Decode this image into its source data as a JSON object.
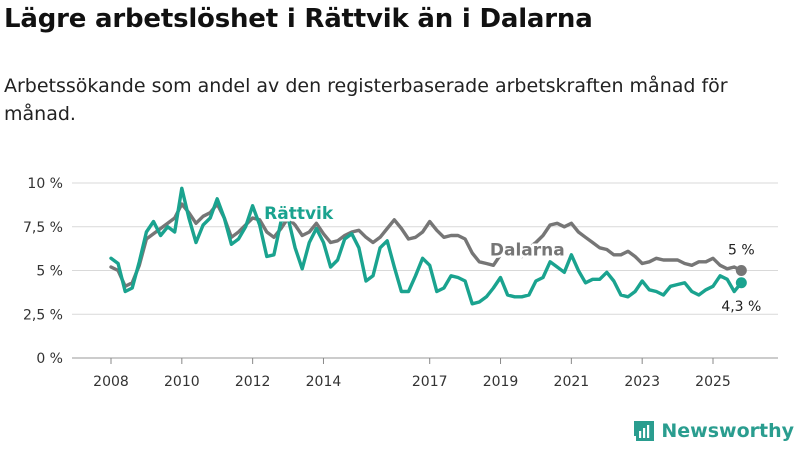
{
  "title": "Lägre arbetslöshet i Rättvik än i Dalarna",
  "subtitle": "Arbetssökande som andel av den registerbaserade arbetskraften månad för månad.",
  "brand": {
    "name": "Newsworthy",
    "icon": "newsworthy-logo-icon",
    "color": "#2a9d8f"
  },
  "chart_data": {
    "type": "line",
    "title": "Lägre arbetslöshet i Rättvik än i Dalarna",
    "xlabel": "",
    "ylabel": "",
    "ylim": [
      0,
      10
    ],
    "xlim": [
      2007.2,
      2026.9
    ],
    "y_ticks": [
      0,
      2.5,
      5,
      7.5,
      10
    ],
    "y_tick_labels": [
      "0 %",
      "2,5 %",
      "5 %",
      "7,5 %",
      "10 %"
    ],
    "x_ticks": [
      2008,
      2010,
      2012,
      2014,
      2017,
      2019,
      2021,
      2023,
      2025
    ],
    "x_tick_labels": [
      "2008",
      "2010",
      "2012",
      "2014",
      "2017",
      "2019",
      "2021",
      "2023",
      "2025"
    ],
    "grid": true,
    "series": [
      {
        "name": "Dalarna",
        "label": "Dalarna",
        "color": "#767676",
        "end_label": "5 %",
        "x": [
          2008.0,
          2008.2,
          2008.4,
          2008.6,
          2008.8,
          2009.0,
          2009.2,
          2009.4,
          2009.6,
          2009.8,
          2010.0,
          2010.2,
          2010.4,
          2010.6,
          2010.8,
          2011.0,
          2011.2,
          2011.4,
          2011.6,
          2011.8,
          2012.0,
          2012.2,
          2012.4,
          2012.6,
          2012.8,
          2013.0,
          2013.2,
          2013.4,
          2013.6,
          2013.8,
          2014.0,
          2014.2,
          2014.4,
          2014.6,
          2014.8,
          2015.0,
          2015.2,
          2015.4,
          2015.6,
          2015.8,
          2016.0,
          2016.2,
          2016.4,
          2016.6,
          2016.8,
          2017.0,
          2017.2,
          2017.4,
          2017.6,
          2017.8,
          2018.0,
          2018.2,
          2018.4,
          2018.6,
          2018.8,
          2019.0,
          2019.2,
          2019.4,
          2019.6,
          2019.8,
          2020.0,
          2020.2,
          2020.4,
          2020.6,
          2020.8,
          2021.0,
          2021.2,
          2021.4,
          2021.6,
          2021.8,
          2022.0,
          2022.2,
          2022.4,
          2022.6,
          2022.8,
          2023.0,
          2023.2,
          2023.4,
          2023.6,
          2023.8,
          2024.0,
          2024.2,
          2024.4,
          2024.6,
          2024.8,
          2025.0,
          2025.2,
          2025.4,
          2025.6,
          2025.8
        ],
        "values": [
          5.2,
          5.0,
          4.1,
          4.3,
          5.3,
          6.8,
          7.1,
          7.4,
          7.7,
          8.0,
          8.8,
          8.3,
          7.7,
          8.1,
          8.3,
          8.8,
          8.0,
          6.9,
          7.2,
          7.6,
          8.0,
          7.9,
          7.2,
          6.9,
          7.4,
          8.0,
          7.6,
          7.0,
          7.2,
          7.7,
          7.1,
          6.6,
          6.7,
          7.0,
          7.2,
          7.3,
          6.9,
          6.6,
          6.9,
          7.4,
          7.9,
          7.4,
          6.8,
          6.9,
          7.2,
          7.8,
          7.3,
          6.9,
          7.0,
          7.0,
          6.8,
          6.0,
          5.5,
          5.4,
          5.3,
          5.9,
          6.1,
          6.0,
          5.8,
          6.3,
          6.6,
          7.0,
          7.6,
          7.7,
          7.5,
          7.7,
          7.2,
          6.9,
          6.6,
          6.3,
          6.2,
          5.9,
          5.9,
          6.1,
          5.8,
          5.4,
          5.5,
          5.7,
          5.6,
          5.6,
          5.6,
          5.4,
          5.3,
          5.5,
          5.5,
          5.7,
          5.3,
          5.1,
          5.2,
          5.0
        ]
      },
      {
        "name": "Rättvik",
        "label": "Rättvik",
        "color": "#1aa38f",
        "end_label": "4,3 %",
        "x": [
          2008.0,
          2008.2,
          2008.4,
          2008.6,
          2008.8,
          2009.0,
          2009.2,
          2009.4,
          2009.6,
          2009.8,
          2010.0,
          2010.2,
          2010.4,
          2010.6,
          2010.8,
          2011.0,
          2011.2,
          2011.4,
          2011.6,
          2011.8,
          2012.0,
          2012.2,
          2012.4,
          2012.6,
          2012.8,
          2013.0,
          2013.2,
          2013.4,
          2013.6,
          2013.8,
          2014.0,
          2014.2,
          2014.4,
          2014.6,
          2014.8,
          2015.0,
          2015.2,
          2015.4,
          2015.6,
          2015.8,
          2016.0,
          2016.2,
          2016.4,
          2016.6,
          2016.8,
          2017.0,
          2017.2,
          2017.4,
          2017.6,
          2017.8,
          2018.0,
          2018.2,
          2018.4,
          2018.6,
          2018.8,
          2019.0,
          2019.2,
          2019.4,
          2019.6,
          2019.8,
          2020.0,
          2020.2,
          2020.4,
          2020.6,
          2020.8,
          2021.0,
          2021.2,
          2021.4,
          2021.6,
          2021.8,
          2022.0,
          2022.2,
          2022.4,
          2022.6,
          2022.8,
          2023.0,
          2023.2,
          2023.4,
          2023.6,
          2023.8,
          2024.0,
          2024.2,
          2024.4,
          2024.6,
          2024.8,
          2025.0,
          2025.2,
          2025.4,
          2025.6,
          2025.8
        ],
        "values": [
          5.7,
          5.4,
          3.8,
          4.0,
          5.5,
          7.2,
          7.8,
          7.0,
          7.5,
          7.2,
          9.7,
          8.0,
          6.6,
          7.6,
          8.0,
          9.1,
          8.0,
          6.5,
          6.8,
          7.5,
          8.7,
          7.6,
          5.8,
          5.9,
          7.8,
          8.0,
          6.3,
          5.1,
          6.6,
          7.4,
          6.6,
          5.2,
          5.6,
          6.8,
          7.1,
          6.3,
          4.4,
          4.7,
          6.3,
          6.7,
          5.2,
          3.8,
          3.8,
          4.7,
          5.7,
          5.3,
          3.8,
          4.0,
          4.7,
          4.6,
          4.4,
          3.1,
          3.2,
          3.5,
          4.0,
          4.6,
          3.6,
          3.5,
          3.5,
          3.6,
          4.4,
          4.6,
          5.5,
          5.2,
          4.9,
          5.9,
          5.0,
          4.3,
          4.5,
          4.5,
          4.9,
          4.4,
          3.6,
          3.5,
          3.8,
          4.4,
          3.9,
          3.8,
          3.6,
          4.1,
          4.2,
          4.3,
          3.8,
          3.6,
          3.9,
          4.1,
          4.7,
          4.5,
          3.8,
          4.3
        ]
      }
    ]
  }
}
